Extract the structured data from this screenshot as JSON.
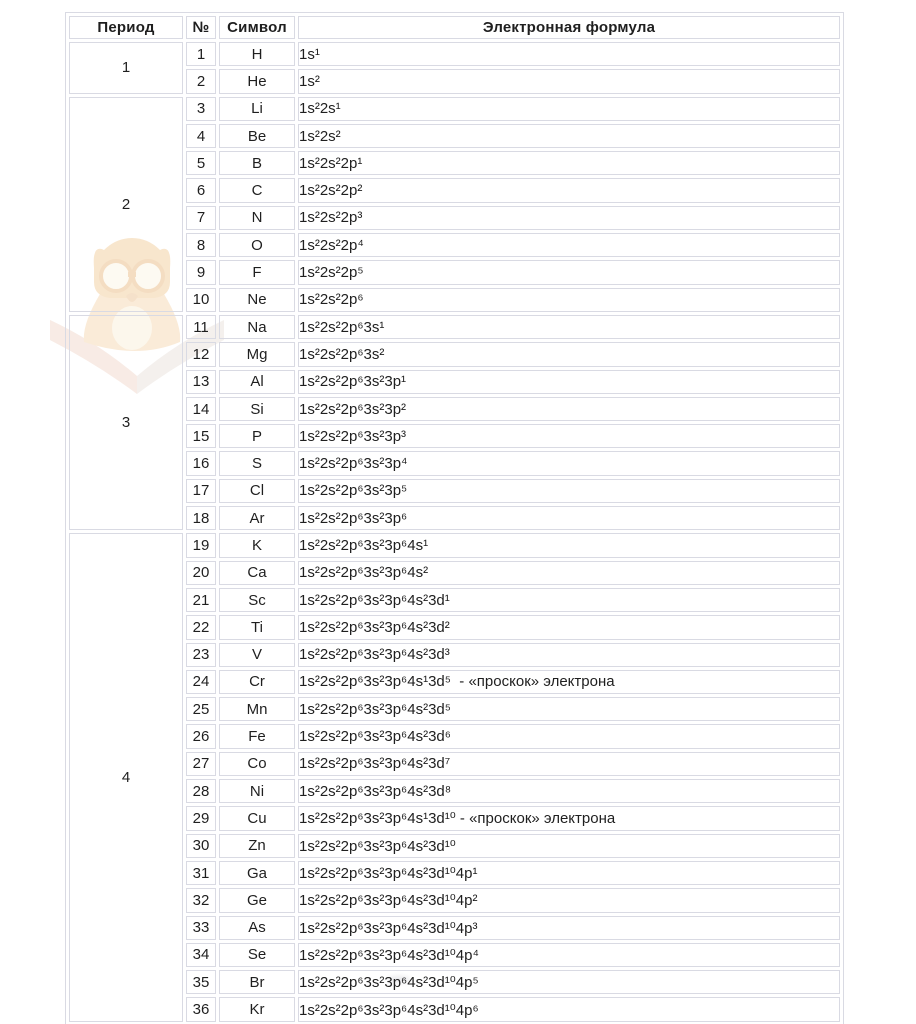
{
  "colors": {
    "border": "#d9dae3",
    "text": "#1f1f1f",
    "background": "#ffffff",
    "watermark_body": "#f6dcba",
    "watermark_highlight": "#fbf1de",
    "watermark_book": "#ece5e0",
    "watermark_pink": "#f6d9cb"
  },
  "table": {
    "headers": {
      "period": "Период",
      "num": "№",
      "symbol": "Символ",
      "formula": "Электронная формула"
    },
    "periods": [
      {
        "label": "1",
        "rows": [
          {
            "num": "1",
            "symbol": "H",
            "formula": "1s¹"
          },
          {
            "num": "2",
            "symbol": "He",
            "formula": "1s²"
          }
        ]
      },
      {
        "label": "2",
        "rows": [
          {
            "num": "3",
            "symbol": "Li",
            "formula": "1s²2s¹"
          },
          {
            "num": "4",
            "symbol": "Be",
            "formula": "1s²2s²"
          },
          {
            "num": "5",
            "symbol": "B",
            "formula": "1s²2s²2p¹"
          },
          {
            "num": "6",
            "symbol": "C",
            "formula": "1s²2s²2p²"
          },
          {
            "num": "7",
            "symbol": "N",
            "formula": "1s²2s²2p³"
          },
          {
            "num": "8",
            "symbol": "O",
            "formula": "1s²2s²2p⁴"
          },
          {
            "num": "9",
            "symbol": "F",
            "formula": "1s²2s²2p⁵"
          },
          {
            "num": "10",
            "symbol": "Ne",
            "formula": "1s²2s²2p⁶"
          }
        ]
      },
      {
        "label": "3",
        "rows": [
          {
            "num": "11",
            "symbol": "Na",
            "formula": "1s²2s²2p⁶3s¹"
          },
          {
            "num": "12",
            "symbol": "Mg",
            "formula": "1s²2s²2p⁶3s²"
          },
          {
            "num": "13",
            "symbol": "Al",
            "formula": "1s²2s²2p⁶3s²3p¹"
          },
          {
            "num": "14",
            "symbol": "Si",
            "formula": "1s²2s²2p⁶3s²3p²"
          },
          {
            "num": "15",
            "symbol": "P",
            "formula": "1s²2s²2p⁶3s²3p³"
          },
          {
            "num": "16",
            "symbol": "S",
            "formula": "1s²2s²2p⁶3s²3p⁴"
          },
          {
            "num": "17",
            "symbol": "Cl",
            "formula": "1s²2s²2p⁶3s²3p⁵"
          },
          {
            "num": "18",
            "symbol": "Ar",
            "formula": "1s²2s²2p⁶3s²3p⁶"
          }
        ]
      },
      {
        "label": "4",
        "rows": [
          {
            "num": "19",
            "symbol": "K",
            "formula": "1s²2s²2p⁶3s²3p⁶4s¹"
          },
          {
            "num": "20",
            "symbol": "Ca",
            "formula": "1s²2s²2p⁶3s²3p⁶4s²"
          },
          {
            "num": "21",
            "symbol": "Sc",
            "formula": "1s²2s²2p⁶3s²3p⁶4s²3d¹"
          },
          {
            "num": "22",
            "symbol": "Ti",
            "formula": "1s²2s²2p⁶3s²3p⁶4s²3d²"
          },
          {
            "num": "23",
            "symbol": "V",
            "formula": "1s²2s²2p⁶3s²3p⁶4s²3d³"
          },
          {
            "num": "24",
            "symbol": "Cr",
            "formula": "1s²2s²2p⁶3s²3p⁶4s¹3d⁵  - «проскок» электрона"
          },
          {
            "num": "25",
            "symbol": "Mn",
            "formula": "1s²2s²2p⁶3s²3p⁶4s²3d⁵"
          },
          {
            "num": "26",
            "symbol": "Fe",
            "formula": "1s²2s²2p⁶3s²3p⁶4s²3d⁶"
          },
          {
            "num": "27",
            "symbol": "Co",
            "formula": "1s²2s²2p⁶3s²3p⁶4s²3d⁷"
          },
          {
            "num": "28",
            "symbol": "Ni",
            "formula": "1s²2s²2p⁶3s²3p⁶4s²3d⁸"
          },
          {
            "num": "29",
            "symbol": "Cu",
            "formula": "1s²2s²2p⁶3s²3p⁶4s¹3d¹⁰ - «проскок» электрона"
          },
          {
            "num": "30",
            "symbol": "Zn",
            "formula": "1s²2s²2p⁶3s²3p⁶4s²3d¹⁰"
          },
          {
            "num": "31",
            "symbol": "Ga",
            "formula": "1s²2s²2p⁶3s²3p⁶4s²3d¹⁰4p¹"
          },
          {
            "num": "32",
            "symbol": "Ge",
            "formula": "1s²2s²2p⁶3s²3p⁶4s²3d¹⁰4p²"
          },
          {
            "num": "33",
            "symbol": "As",
            "formula": "1s²2s²2p⁶3s²3p⁶4s²3d¹⁰4p³"
          },
          {
            "num": "34",
            "symbol": "Se",
            "formula": "1s²2s²2p⁶3s²3p⁶4s²3d¹⁰4p⁴"
          },
          {
            "num": "35",
            "symbol": "Br",
            "formula": "1s²2s²2p⁶3s²3p⁶4s²3d¹⁰4p⁵"
          },
          {
            "num": "36",
            "symbol": "Kr",
            "formula": "1s²2s²2p⁶3s²3p⁶4s²3d¹⁰4p⁶"
          }
        ]
      }
    ]
  }
}
